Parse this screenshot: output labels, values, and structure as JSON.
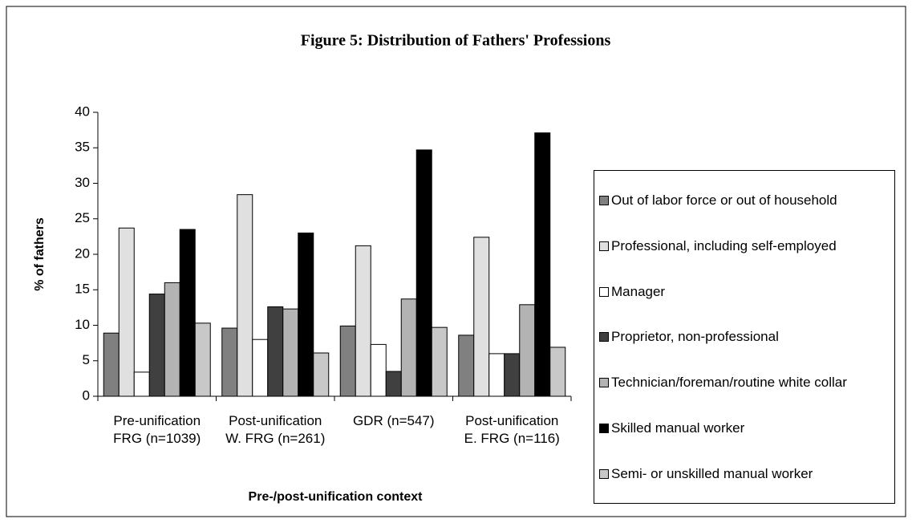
{
  "chart_data": {
    "type": "bar",
    "title": "Figure 5: Distribution of Fathers' Professions",
    "x_label": "Pre-/post-unification context",
    "y_label": "% of fathers",
    "categories": [
      "Pre-unification FRG (n=1039)",
      "Post-unification W. FRG (n=261)",
      "GDR (n=547)",
      "Post-unification E. FRG (n=116)"
    ],
    "series": [
      {
        "name": "Out of labor force or out of household",
        "color": "#808080",
        "values": [
          8.9,
          9.6,
          9.9,
          8.6
        ]
      },
      {
        "name": "Professional, including self-employed",
        "color": "#e0e0e0",
        "values": [
          23.7,
          28.4,
          21.2,
          22.4
        ]
      },
      {
        "name": "Manager",
        "color": "#ffffff",
        "values": [
          3.4,
          8.0,
          7.3,
          6.0
        ]
      },
      {
        "name": "Proprietor, non-professional",
        "color": "#404040",
        "values": [
          14.4,
          12.6,
          3.5,
          6.0
        ]
      },
      {
        "name": "Technician/foreman/routine white collar",
        "color": "#b3b3b3",
        "values": [
          16.0,
          12.3,
          13.7,
          12.9
        ]
      },
      {
        "name": "Skilled manual worker",
        "color": "#000000",
        "values": [
          23.5,
          23.0,
          34.7,
          37.1
        ]
      },
      {
        "name": "Semi- or unskilled manual worker",
        "color": "#c8c8c8",
        "values": [
          10.3,
          6.1,
          9.7,
          6.9
        ]
      }
    ],
    "ylim": [
      0,
      40
    ],
    "yticks": [
      0,
      5,
      10,
      15,
      20,
      25,
      30,
      35,
      40
    ],
    "grid": false,
    "legend": "right"
  }
}
